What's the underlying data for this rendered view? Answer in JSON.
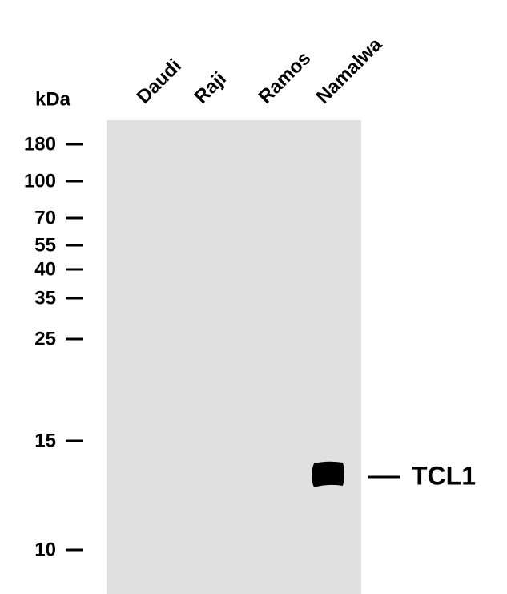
{
  "unit_label": "kDa",
  "lanes": [
    "Daudi",
    "Raji",
    "Ramos",
    "Namalwa"
  ],
  "markers": [
    180,
    100,
    70,
    55,
    40,
    35,
    25,
    15,
    10
  ],
  "band_label": "TCL1"
}
